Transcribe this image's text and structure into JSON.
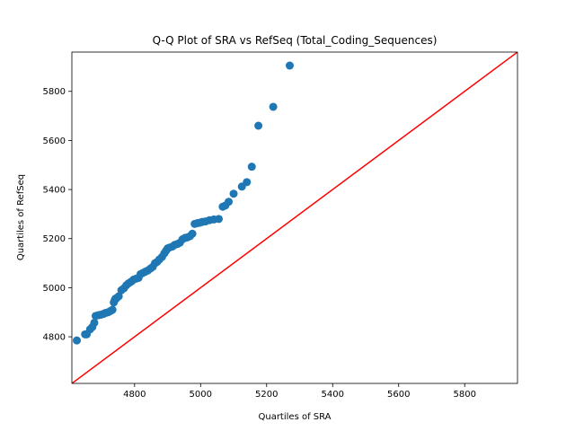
{
  "chart_data": {
    "type": "scatter",
    "title": "Q-Q Plot of SRA vs RefSeq (Total_Coding_Sequences)",
    "xlabel": "Quartiles of SRA",
    "ylabel": "Quartiles of RefSeq",
    "xlim": [
      4610,
      5960
    ],
    "ylim": [
      4610,
      5960
    ],
    "xticks": [
      4800,
      5000,
      5200,
      5400,
      5600,
      5800
    ],
    "yticks": [
      4800,
      5000,
      5200,
      5400,
      5600,
      5800
    ],
    "grid": false,
    "marker_color": "#1f77b4",
    "reference_line": {
      "from": [
        4610,
        4610
      ],
      "to": [
        5960,
        5960
      ],
      "color": "#ff0000"
    },
    "series": [
      {
        "x": [
          4625,
          4650,
          4655,
          4665,
          4672,
          4678,
          4682,
          4690,
          4698,
          4705,
          4712,
          4720,
          4727,
          4733,
          4737,
          4740,
          4742,
          4745,
          4752,
          4760,
          4768,
          4775,
          4782,
          4790,
          4797,
          4805,
          4812,
          4818,
          4825,
          4832,
          4840,
          4848,
          4855,
          4862,
          4868,
          4875,
          4883,
          4890,
          4895,
          4900,
          4905,
          4915,
          4922,
          4930,
          4937,
          4945,
          4953,
          4960,
          4968,
          4975,
          4982,
          4990,
          4998,
          5005,
          5015,
          5027,
          5040,
          5055,
          5067,
          5075,
          5085,
          5100,
          5125,
          5140,
          5155,
          5175,
          5220,
          5270
        ],
        "y": [
          4785,
          4810,
          4810,
          4830,
          4840,
          4857,
          4885,
          4888,
          4890,
          4893,
          4897,
          4900,
          4905,
          4910,
          4940,
          4950,
          4955,
          4957,
          4965,
          4990,
          4998,
          5010,
          5018,
          5025,
          5033,
          5037,
          5040,
          5055,
          5060,
          5065,
          5070,
          5078,
          5085,
          5100,
          5105,
          5115,
          5125,
          5140,
          5150,
          5160,
          5163,
          5168,
          5175,
          5178,
          5183,
          5197,
          5203,
          5205,
          5210,
          5220,
          5260,
          5263,
          5265,
          5268,
          5270,
          5275,
          5278,
          5280,
          5330,
          5335,
          5350,
          5383,
          5412,
          5430,
          5493,
          5660,
          5737,
          5905
        ]
      }
    ]
  }
}
